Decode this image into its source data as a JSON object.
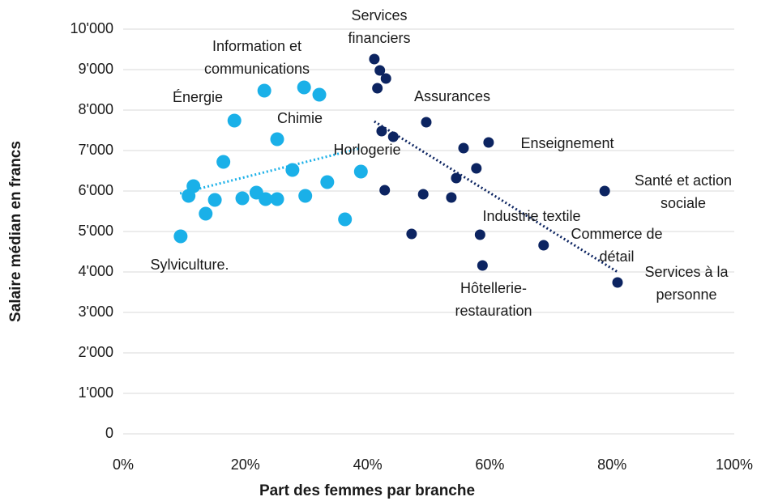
{
  "chart_data": {
    "type": "scatter",
    "x_label": "Part des femmes par branche",
    "y_label": "Salaire médian en francs",
    "xlim": [
      0,
      100
    ],
    "xticks": [
      {
        "value": 0,
        "label": "0%"
      },
      {
        "value": 20,
        "label": "20%"
      },
      {
        "value": 40,
        "label": "40%"
      },
      {
        "value": 60,
        "label": "60%"
      },
      {
        "value": 80,
        "label": "80%"
      },
      {
        "value": 100,
        "label": "100%"
      }
    ],
    "ylim": [
      0,
      10000
    ],
    "yticks": [
      0,
      {
        "value": 1000,
        "label": "1'000"
      },
      {
        "value": 2000,
        "label": "2'000"
      },
      {
        "value": 3000,
        "label": "3'000"
      },
      {
        "value": 4000,
        "label": "4'000"
      },
      {
        "value": 5000,
        "label": "5'000"
      },
      {
        "value": 6000,
        "label": "6'000"
      },
      {
        "value": 7000,
        "label": "7'000"
      },
      {
        "value": 8000,
        "label": "8'000"
      },
      {
        "value": 9000,
        "label": "9'000"
      },
      {
        "value": 10000,
        "label": "10'000"
      }
    ],
    "grid": true,
    "series": [
      {
        "color": "#1ab0e8",
        "x": [
          9.4,
          10.7,
          11.5,
          13.5,
          15.0,
          16.4,
          18.2,
          19.5,
          21.8,
          23.1,
          23.3,
          25.2,
          25.2,
          27.7,
          29.6,
          29.8,
          32.1,
          33.4,
          36.3,
          38.9
        ],
        "values": [
          4880,
          5880,
          6120,
          5440,
          5780,
          6720,
          7740,
          5820,
          5960,
          8480,
          5800,
          5800,
          7280,
          6520,
          8560,
          5880,
          8380,
          6220,
          5300,
          6480
        ],
        "trendline": {
          "x": [
            9.3,
            38.9
          ],
          "values": [
            5940,
            7060
          ]
        }
      },
      {
        "color": "#0c2461",
        "x": [
          41.1,
          41.6,
          42.0,
          43.0,
          42.3,
          42.8,
          44.2,
          47.2,
          49.1,
          49.6,
          53.7,
          54.5,
          55.7,
          57.8,
          58.4,
          58.8,
          59.8,
          68.8,
          78.8,
          80.9
        ],
        "values": [
          9260,
          8540,
          8980,
          8780,
          7480,
          6020,
          7340,
          4940,
          5920,
          7700,
          5840,
          6320,
          7060,
          6560,
          4920,
          4160,
          7200,
          4660,
          6000,
          3740
        ],
        "trendline": {
          "x": [
            41.1,
            80.9
          ],
          "values": [
            7720,
            4000
          ]
        }
      }
    ],
    "annotations": [
      [
        "Services",
        "financiers"
      ],
      [
        "Information et",
        "communications"
      ],
      [
        "Énergie"
      ],
      [
        "Chimie"
      ],
      [
        "Assurances"
      ],
      [
        "Horlogerie"
      ],
      [
        "Enseignement"
      ],
      [
        "Santé et action",
        "sociale"
      ],
      [
        "Industrie textile"
      ],
      [
        "Commerce de",
        "détail"
      ],
      [
        "Sylviculture."
      ],
      [
        "Hôtellerie-",
        "restauration"
      ],
      [
        "Services à la",
        "personne"
      ]
    ]
  }
}
